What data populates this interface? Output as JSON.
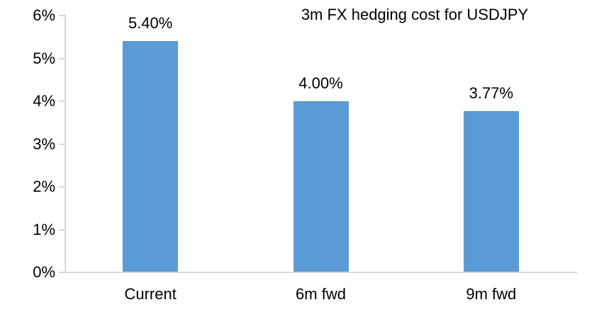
{
  "chart_data": {
    "type": "bar",
    "title": "3m FX hedging cost for USDJPY",
    "categories": [
      "Current",
      "6m fwd",
      "9m fwd"
    ],
    "values": [
      5.4,
      4.0,
      3.77
    ],
    "data_labels": [
      "5.40%",
      "4.00%",
      "3.77%"
    ],
    "xlabel": "",
    "ylabel": "",
    "ylim": [
      0,
      6
    ],
    "ytick_values": [
      0,
      1,
      2,
      3,
      4,
      5,
      6
    ],
    "ytick_labels": [
      "0%",
      "1%",
      "2%",
      "3%",
      "4%",
      "5%",
      "6%"
    ],
    "grid": false,
    "legend_position": "none",
    "bar_color": "#5B9BD5",
    "axis_color": "#D9D9D9",
    "text_color": "#000000"
  }
}
